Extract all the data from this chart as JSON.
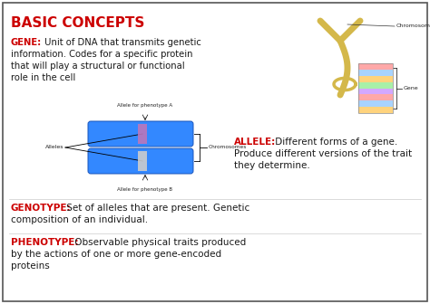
{
  "title": "BASIC CONCEPTS",
  "title_color": "#cc0000",
  "title_fontsize": 11,
  "bg_color": "#ffffff",
  "border_color": "#555555",
  "red_color": "#cc0000",
  "black_color": "#1a1a1a",
  "blue_chrom_color": "#3388ff",
  "chrom_highlight1": "#bb77bb",
  "chrom_highlight2": "#cccccc",
  "gene_text": "GENE:",
  "gene_body": " Unit of DNA that transmits genetic\ninformation. Codes for a specific protein\nthat will play a structural or functional\nrole in the cell",
  "allele_text": "ALLELE:",
  "allele_body": " Different forms of a gene.\nProduce different versions of the trait\nthey determine.",
  "genotype_text": "GENOTYPE:",
  "genotype_body": " Set of alleles that are present. Genetic\ncomposition of an individual.",
  "phenotype_text": "PHENOTYPE:",
  "phenotype_body": " Observable physical traits produced\nby the actions of one or more gene-encoded\nproteins",
  "chrom_label_top": "Allele for phenotype A",
  "chrom_label_bottom": "Allele for phenotype B",
  "chrom_label_left": "Alleles",
  "chrom_label_right": "Chromosomes",
  "dna_label_top": "Chromosome",
  "dna_label_gene": "Gene"
}
